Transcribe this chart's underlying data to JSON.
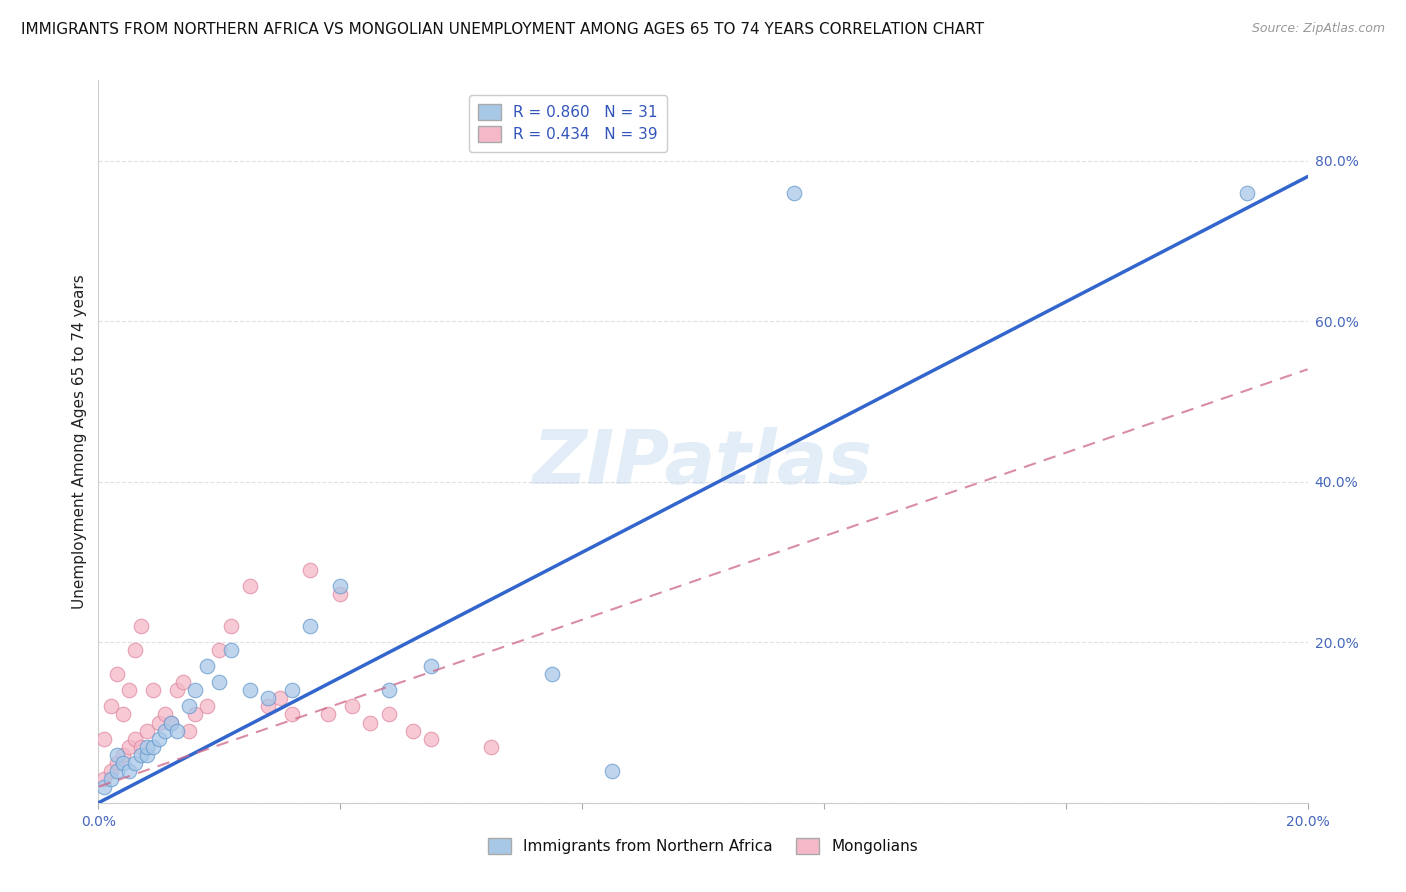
{
  "title": "IMMIGRANTS FROM NORTHERN AFRICA VS MONGOLIAN UNEMPLOYMENT AMONG AGES 65 TO 74 YEARS CORRELATION CHART",
  "source": "Source: ZipAtlas.com",
  "ylabel": "Unemployment Among Ages 65 to 74 years",
  "xlim": [
    0.0,
    0.2
  ],
  "ylim": [
    0.0,
    0.9
  ],
  "blue_R": 0.86,
  "blue_N": 31,
  "pink_R": 0.434,
  "pink_N": 39,
  "blue_color": "#a8c8e8",
  "pink_color": "#f4b8c8",
  "blue_edge_color": "#6699cc",
  "pink_edge_color": "#e088a0",
  "blue_line_color": "#3366cc",
  "pink_line_color": "#cc6688",
  "watermark": "ZIPatlas",
  "blue_scatter_x": [
    0.001,
    0.002,
    0.003,
    0.003,
    0.004,
    0.005,
    0.006,
    0.007,
    0.008,
    0.008,
    0.009,
    0.01,
    0.011,
    0.012,
    0.013,
    0.015,
    0.016,
    0.018,
    0.02,
    0.022,
    0.025,
    0.028,
    0.032,
    0.035,
    0.04,
    0.048,
    0.055,
    0.075,
    0.085,
    0.115,
    0.19
  ],
  "blue_scatter_y": [
    0.02,
    0.03,
    0.04,
    0.06,
    0.05,
    0.04,
    0.05,
    0.06,
    0.06,
    0.07,
    0.07,
    0.08,
    0.09,
    0.1,
    0.09,
    0.12,
    0.14,
    0.17,
    0.15,
    0.19,
    0.14,
    0.13,
    0.14,
    0.22,
    0.27,
    0.14,
    0.17,
    0.16,
    0.04,
    0.76,
    0.76
  ],
  "pink_scatter_x": [
    0.001,
    0.001,
    0.002,
    0.002,
    0.003,
    0.003,
    0.004,
    0.004,
    0.005,
    0.005,
    0.006,
    0.006,
    0.007,
    0.007,
    0.008,
    0.009,
    0.01,
    0.011,
    0.012,
    0.013,
    0.014,
    0.015,
    0.016,
    0.018,
    0.02,
    0.022,
    0.025,
    0.028,
    0.03,
    0.032,
    0.035,
    0.038,
    0.04,
    0.042,
    0.045,
    0.048,
    0.052,
    0.055,
    0.065
  ],
  "pink_scatter_y": [
    0.03,
    0.08,
    0.04,
    0.12,
    0.05,
    0.16,
    0.06,
    0.11,
    0.07,
    0.14,
    0.08,
    0.19,
    0.07,
    0.22,
    0.09,
    0.14,
    0.1,
    0.11,
    0.1,
    0.14,
    0.15,
    0.09,
    0.11,
    0.12,
    0.19,
    0.22,
    0.27,
    0.12,
    0.13,
    0.11,
    0.29,
    0.11,
    0.26,
    0.12,
    0.1,
    0.11,
    0.09,
    0.08,
    0.07
  ],
  "blue_line_x": [
    0.0,
    0.2
  ],
  "blue_line_y": [
    0.0,
    0.78
  ],
  "pink_line_x": [
    0.0,
    0.2
  ],
  "pink_line_y": [
    0.02,
    0.54
  ],
  "grid_color": "#cccccc",
  "background_color": "#ffffff",
  "title_fontsize": 11,
  "axis_label_fontsize": 11,
  "tick_fontsize": 10,
  "legend_fontsize": 11,
  "marker_size": 110
}
